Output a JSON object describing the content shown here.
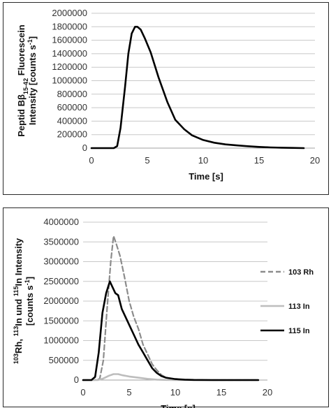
{
  "chart_data": [
    {
      "type": "line",
      "xlabel": "Time [s]",
      "ylabel_lines": [
        "Peptid Bβ15-42 Fluorescein",
        "Intensity  [counts s-1]"
      ],
      "xlim": [
        0,
        20
      ],
      "ylim": [
        0,
        2000000
      ],
      "x_ticks": [
        0,
        5,
        10,
        15,
        20
      ],
      "y_ticks": [
        0,
        200000,
        400000,
        600000,
        800000,
        1000000,
        1200000,
        1400000,
        1600000,
        1800000,
        2000000
      ],
      "grid": "horizontal",
      "series": [
        {
          "color": "#000000",
          "style": "solid",
          "x": [
            0,
            2.0,
            2.3,
            2.6,
            3.0,
            3.3,
            3.6,
            3.9,
            4.1,
            4.4,
            4.8,
            5.3,
            6.0,
            6.8,
            7.5,
            8.3,
            9.0,
            10.0,
            11.0,
            12.0,
            13.0,
            14.0,
            15.0,
            16.0,
            17.0,
            18.0,
            19.0
          ],
          "y": [
            0,
            0,
            30000,
            300000,
            900000,
            1400000,
            1700000,
            1800000,
            1800000,
            1760000,
            1620000,
            1420000,
            1050000,
            680000,
            420000,
            280000,
            190000,
            120000,
            80000,
            55000,
            40000,
            28000,
            18000,
            10000,
            6000,
            3000,
            0
          ]
        }
      ]
    },
    {
      "type": "line",
      "xlabel": "Time [s]",
      "ylabel_lines": [
        "103Rh, 113In und 115In  Intensity",
        "[counts s-1]"
      ],
      "xlim": [
        0,
        20
      ],
      "ylim": [
        0,
        4000000
      ],
      "x_ticks": [
        0,
        5,
        10,
        15,
        20
      ],
      "y_ticks": [
        0,
        500000,
        1000000,
        1500000,
        2000000,
        2500000,
        3000000,
        3500000,
        4000000
      ],
      "grid": "horizontal",
      "legend": "right",
      "series": [
        {
          "name": "103 Rh",
          "color": "#8c8c8c",
          "style": "dashed",
          "x": [
            0,
            1.2,
            1.8,
            2.2,
            2.6,
            3.0,
            3.3,
            3.6,
            4.0,
            4.5,
            5.0,
            5.5,
            6.0,
            6.5,
            7.0,
            7.5,
            8.0,
            8.5,
            9.0,
            10.0,
            11.0,
            12.0,
            14.0,
            16.0,
            19.0
          ],
          "y": [
            0,
            0,
            30000,
            500000,
            1800000,
            3000000,
            3650000,
            3450000,
            3150000,
            2600000,
            2000000,
            1600000,
            1300000,
            900000,
            650000,
            400000,
            250000,
            130000,
            60000,
            20000,
            8000,
            3000,
            0,
            0,
            0
          ]
        },
        {
          "name": "113 In",
          "color": "#bdbdbd",
          "style": "solid",
          "x": [
            0,
            1.6,
            2.2,
            2.8,
            3.3,
            3.8,
            4.3,
            5.0,
            6.0,
            7.0,
            8.0,
            9.0,
            10.0,
            19.0
          ],
          "y": [
            0,
            0,
            40000,
            110000,
            150000,
            150000,
            120000,
            90000,
            60000,
            30000,
            10000,
            3000,
            0,
            0
          ]
        },
        {
          "name": "115 In",
          "color": "#000000",
          "style": "solid",
          "x": [
            0,
            0.9,
            1.3,
            1.7,
            2.1,
            2.5,
            2.9,
            3.2,
            3.5,
            3.8,
            4.2,
            4.6,
            5.0,
            5.5,
            6.0,
            6.5,
            7.0,
            7.5,
            8.0,
            8.5,
            9.0,
            10.0,
            11.0,
            12.0,
            14.0,
            16.0,
            19.0
          ],
          "y": [
            0,
            0,
            80000,
            700000,
            1700000,
            2200000,
            2500000,
            2350000,
            2200000,
            2150000,
            1800000,
            1600000,
            1400000,
            1150000,
            900000,
            700000,
            500000,
            300000,
            180000,
            100000,
            60000,
            25000,
            10000,
            4000,
            0,
            0,
            0
          ]
        }
      ]
    }
  ]
}
